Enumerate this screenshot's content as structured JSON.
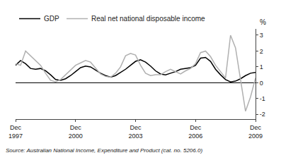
{
  "chart_data": {
    "type": "line",
    "ylabel": "%",
    "annotation": "Source: Australian National Income, Expenditure and Product (cat. no. 5206.0)",
    "categories": [
      "Dec\n1997",
      null,
      null,
      null,
      null,
      null,
      null,
      null,
      null,
      null,
      null,
      null,
      "Dec\n2000",
      null,
      null,
      null,
      null,
      null,
      null,
      null,
      null,
      null,
      null,
      null,
      "Dec\n2003",
      null,
      null,
      null,
      null,
      null,
      null,
      null,
      null,
      null,
      null,
      null,
      "Dec\n2006",
      null,
      null,
      null,
      null,
      null,
      null,
      null,
      null,
      null,
      null,
      null,
      "Dec\n2009"
    ],
    "series": [
      {
        "name": "GDP",
        "color": "#000000",
        "values": [
          1.1,
          1.4,
          1.2,
          0.9,
          0.85,
          0.9,
          0.75,
          0.5,
          0.2,
          0.15,
          0.25,
          0.45,
          0.7,
          0.95,
          1.05,
          1.0,
          0.8,
          0.6,
          0.45,
          0.35,
          0.45,
          0.65,
          0.85,
          1.1,
          1.35,
          1.45,
          1.3,
          1.05,
          0.75,
          0.55,
          0.5,
          0.6,
          0.7,
          0.85,
          0.9,
          0.95,
          1.1,
          1.55,
          1.6,
          1.35,
          0.85,
          0.5,
          0.2,
          0.05,
          0.1,
          0.25,
          0.45,
          0.6,
          0.65
        ]
      },
      {
        "name": "Real net national disposable income",
        "color": "#b0b0b0",
        "values": [
          1.2,
          1.1,
          2.0,
          1.7,
          1.4,
          1.1,
          0.6,
          0.15,
          0.05,
          0.2,
          0.5,
          0.8,
          1.1,
          1.25,
          1.4,
          1.3,
          0.9,
          0.55,
          0.4,
          0.35,
          0.6,
          1.0,
          1.7,
          1.85,
          1.75,
          1.1,
          0.6,
          0.45,
          0.5,
          0.5,
          0.7,
          0.85,
          0.7,
          0.55,
          0.75,
          0.9,
          1.2,
          1.9,
          2.0,
          1.65,
          1.1,
          0.7,
          0.3,
          3.0,
          2.2,
          0.2,
          -1.8,
          -0.9,
          0.3
        ]
      }
    ],
    "ylim": [
      -2.3,
      3.4
    ],
    "yticks": [
      -2,
      -1,
      0,
      1,
      2,
      3
    ],
    "grid": false,
    "legend": "upper left"
  }
}
